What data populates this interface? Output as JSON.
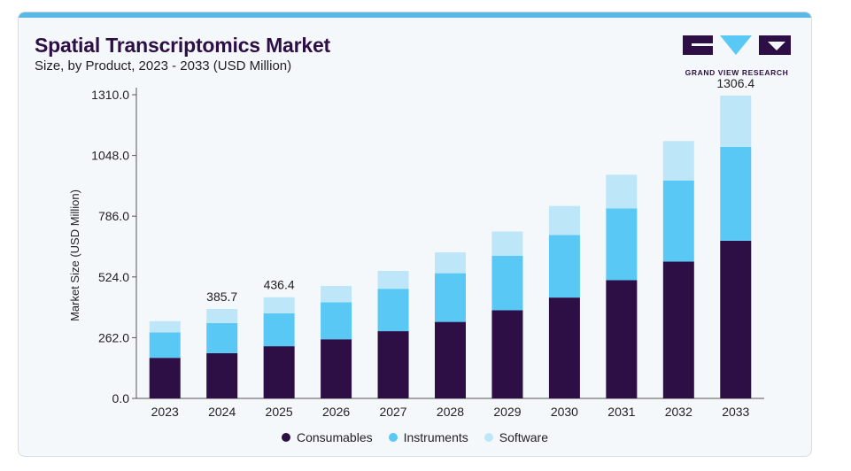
{
  "header": {
    "title": "Spatial Transcriptomics Market",
    "subtitle": "Size, by Product, 2023 - 2033 (USD Million)"
  },
  "brand": {
    "name": "GRAND VIEW RESEARCH",
    "icon": "grand-view-research-logo"
  },
  "colors": {
    "background": "#f4f8fb",
    "accent_bar": "#5ab8e6",
    "title": "#2d0f46"
  },
  "chart_data": {
    "type": "bar",
    "stacked": true,
    "categories": [
      "2023",
      "2024",
      "2025",
      "2026",
      "2027",
      "2028",
      "2029",
      "2030",
      "2031",
      "2032",
      "2033"
    ],
    "series": [
      {
        "name": "Consumables",
        "color": "#2d0f46",
        "values": [
          175,
          195,
          225,
          255,
          290,
          330,
          380,
          435,
          510,
          590,
          680
        ]
      },
      {
        "name": "Instruments",
        "color": "#5ac8f5",
        "values": [
          110,
          130,
          142,
          160,
          183,
          210,
          235,
          270,
          310,
          350,
          405
        ]
      },
      {
        "name": "Software",
        "color": "#bde6f8",
        "values": [
          48,
          60.7,
          69.4,
          70,
          77,
          90,
          105,
          125,
          145,
          170,
          221.4
        ]
      }
    ],
    "data_labels": [
      "",
      "385.7",
      "436.4",
      "",
      "",
      "",
      "",
      "",
      "",
      "",
      "1306.4"
    ],
    "xlabel": "",
    "ylabel": "Market Size (USD Million)",
    "yticks": [
      "0.0",
      "262.0",
      "524.0",
      "786.0",
      "1048.0",
      "1310.0"
    ],
    "ylim": [
      0,
      1310
    ],
    "grid": false,
    "legend_position": "bottom-center"
  }
}
